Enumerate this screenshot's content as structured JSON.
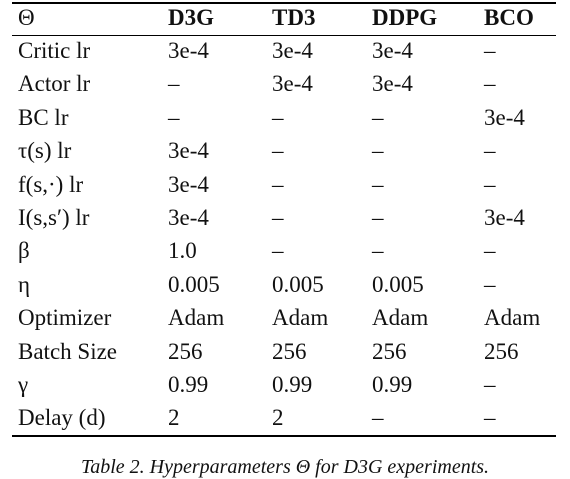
{
  "table": {
    "header": [
      "Θ",
      "D3G",
      "TD3",
      "DDPG",
      "BCO"
    ],
    "rows": [
      [
        "Critic lr",
        "3e-4",
        "3e-4",
        "3e-4",
        "–"
      ],
      [
        "Actor lr",
        "–",
        "3e-4",
        "3e-4",
        "–"
      ],
      [
        "BC lr",
        "–",
        "–",
        "–",
        "3e-4"
      ],
      [
        "τ(s) lr",
        "3e-4",
        "–",
        "–",
        "–"
      ],
      [
        "f(s,·) lr",
        "3e-4",
        "–",
        "–",
        "–"
      ],
      [
        "I(s,s′) lr",
        "3e-4",
        "–",
        "–",
        "3e-4"
      ],
      [
        "β",
        "1.0",
        "–",
        "–",
        "–"
      ],
      [
        "η",
        "0.005",
        "0.005",
        "0.005",
        "–"
      ],
      [
        "Optimizer",
        "Adam",
        "Adam",
        "Adam",
        "Adam"
      ],
      [
        "Batch Size",
        "256",
        "256",
        "256",
        "256"
      ],
      [
        "γ",
        "0.99",
        "0.99",
        "0.99",
        "–"
      ],
      [
        "Delay (d)",
        "2",
        "2",
        "–",
        "–"
      ]
    ]
  },
  "caption": "Table 2. Hyperparameters Θ for D3G experiments."
}
